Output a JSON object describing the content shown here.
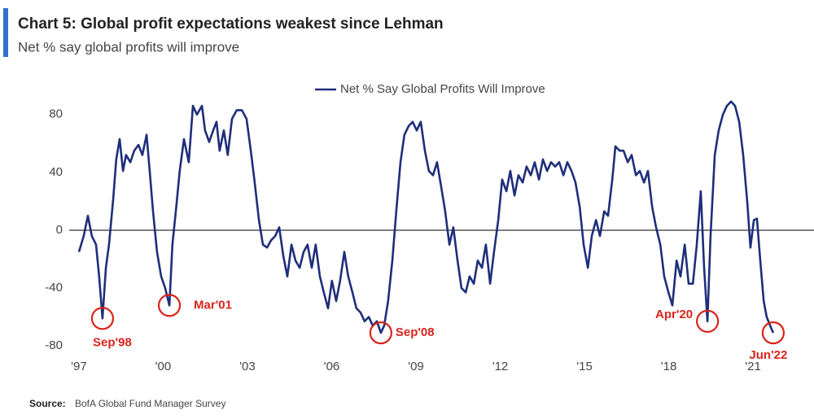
{
  "chart_data": {
    "type": "line",
    "title": "Chart 5: Global profit expectations weakest since Lehman",
    "subtitle": "Net % say global profits will improve",
    "source": {
      "label": "Source:",
      "text": "BofA Global Fund Manager Survey"
    },
    "xlim": [
      1996.9,
      2023.1
    ],
    "ylim": [
      -85,
      90
    ],
    "xticks": [
      {
        "value": 1997,
        "label": "'97"
      },
      {
        "value": 2000,
        "label": "'00"
      },
      {
        "value": 2003,
        "label": "'03"
      },
      {
        "value": 2006,
        "label": "'06"
      },
      {
        "value": 2009,
        "label": "'09"
      },
      {
        "value": 2012,
        "label": "'12"
      },
      {
        "value": 2015,
        "label": "'15"
      },
      {
        "value": 2018,
        "label": "'18"
      },
      {
        "value": 2021,
        "label": "'21"
      }
    ],
    "yticks": [
      -80,
      -40,
      0,
      40,
      80
    ],
    "zero_line": true,
    "legend": "top",
    "x": [
      1997.0,
      1997.17,
      1997.32,
      1997.46,
      1997.61,
      1997.72,
      1997.84,
      1997.96,
      1998.07,
      1998.22,
      1998.33,
      1998.45,
      1998.57,
      1998.68,
      1998.83,
      1998.97,
      1999.12,
      1999.26,
      1999.41,
      1999.52,
      1999.64,
      1999.78,
      1999.93,
      2000.07,
      2000.22,
      2000.33,
      2000.45,
      2000.59,
      2000.74,
      2000.91,
      2001.06,
      2001.2,
      2001.38,
      2001.49,
      2001.64,
      2001.78,
      2001.9,
      2002.01,
      2002.16,
      2002.3,
      2002.45,
      2002.62,
      2002.8,
      2002.97,
      2003.12,
      2003.26,
      2003.41,
      2003.55,
      2003.7,
      2003.84,
      2003.99,
      2004.13,
      2004.28,
      2004.42,
      2004.57,
      2004.71,
      2004.86,
      2005.0,
      2005.14,
      2005.29,
      2005.43,
      2005.58,
      2005.72,
      2005.87,
      2006.01,
      2006.16,
      2006.3,
      2006.45,
      2006.59,
      2006.74,
      2006.88,
      2007.03,
      2007.17,
      2007.32,
      2007.46,
      2007.61,
      2007.75,
      2007.87,
      2008.01,
      2008.16,
      2008.3,
      2008.45,
      2008.59,
      2008.74,
      2008.88,
      2009.03,
      2009.17,
      2009.32,
      2009.46,
      2009.61,
      2009.75,
      2009.9,
      2010.04,
      2010.19,
      2010.33,
      2010.48,
      2010.62,
      2010.77,
      2010.91,
      2011.06,
      2011.2,
      2011.35,
      2011.49,
      2011.64,
      2011.78,
      2011.93,
      2012.07,
      2012.22,
      2012.36,
      2012.51,
      2012.65,
      2012.8,
      2012.94,
      2013.09,
      2013.23,
      2013.38,
      2013.52,
      2013.67,
      2013.81,
      2013.96,
      2014.1,
      2014.25,
      2014.39,
      2014.54,
      2014.68,
      2014.83,
      2014.97,
      2015.12,
      2015.26,
      2015.41,
      2015.55,
      2015.7,
      2015.84,
      2015.99,
      2016.1,
      2016.25,
      2016.39,
      2016.54,
      2016.68,
      2016.83,
      2016.97,
      2017.12,
      2017.26,
      2017.41,
      2017.55,
      2017.7,
      2017.84,
      2017.99,
      2018.13,
      2018.28,
      2018.42,
      2018.57,
      2018.71,
      2018.86,
      2019.0,
      2019.14,
      2019.26,
      2019.38,
      2019.49,
      2019.64,
      2019.78,
      2019.93,
      2020.07,
      2020.22,
      2020.36,
      2020.51,
      2020.65,
      2020.8,
      2020.91,
      2021.03,
      2021.14,
      2021.26,
      2021.38,
      2021.49,
      2021.61,
      2021.72
    ],
    "series": [
      {
        "name": "Net % Say Global Profits Will Improve",
        "color": "#1f2e7a",
        "values": [
          -15,
          -4,
          10,
          -4,
          -10,
          -32,
          -61,
          -26,
          -10,
          21,
          49,
          63,
          41,
          52,
          47,
          55,
          59,
          52,
          66,
          41,
          13,
          -15,
          -32,
          -40,
          -52,
          -10,
          13,
          41,
          63,
          47,
          86,
          80,
          86,
          69,
          61,
          69,
          75,
          55,
          69,
          52,
          77,
          83,
          83,
          77,
          55,
          33,
          7,
          -10,
          -12,
          -7,
          -4,
          2,
          -18,
          -32,
          -10,
          -21,
          -26,
          -15,
          -10,
          -26,
          -10,
          -32,
          -43,
          -54,
          -35,
          -49,
          -35,
          -15,
          -32,
          -43,
          -54,
          -57,
          -63,
          -60,
          -66,
          -63,
          -71,
          -66,
          -49,
          -21,
          13,
          47,
          66,
          72,
          75,
          69,
          75,
          55,
          41,
          38,
          47,
          30,
          13,
          -10,
          2,
          -21,
          -40,
          -43,
          -32,
          -37,
          -21,
          -26,
          -10,
          -37,
          -15,
          7,
          35,
          27,
          41,
          24,
          38,
          33,
          44,
          38,
          47,
          35,
          49,
          41,
          47,
          44,
          47,
          38,
          47,
          41,
          33,
          16,
          -10,
          -26,
          -4,
          7,
          -4,
          13,
          10,
          35,
          58,
          55,
          55,
          47,
          52,
          38,
          41,
          33,
          41,
          16,
          2,
          -10,
          -32,
          -43,
          -52,
          -21,
          -32,
          -10,
          -37,
          -37,
          -10,
          27,
          -26,
          -63,
          -4,
          52,
          69,
          80,
          86,
          89,
          86,
          75,
          52,
          19,
          -12,
          7,
          8,
          -21,
          -49,
          -60,
          -66,
          -71
        ]
      }
    ],
    "annotations": [
      {
        "text": "Sep'98",
        "x": 1997.84,
        "y": -61,
        "color": "#d9241c"
      },
      {
        "text": "Mar'01",
        "x": 2000.22,
        "y": -52,
        "color": "#d9241c"
      },
      {
        "text": "Sep'08",
        "x": 2007.75,
        "y": -71,
        "color": "#d9241c"
      },
      {
        "text": "Apr'20",
        "x": 2019.38,
        "y": -63,
        "color": "#d9241c"
      },
      {
        "text": "Jun'22",
        "x": 2021.72,
        "y": -71,
        "color": "#d9241c"
      }
    ]
  }
}
